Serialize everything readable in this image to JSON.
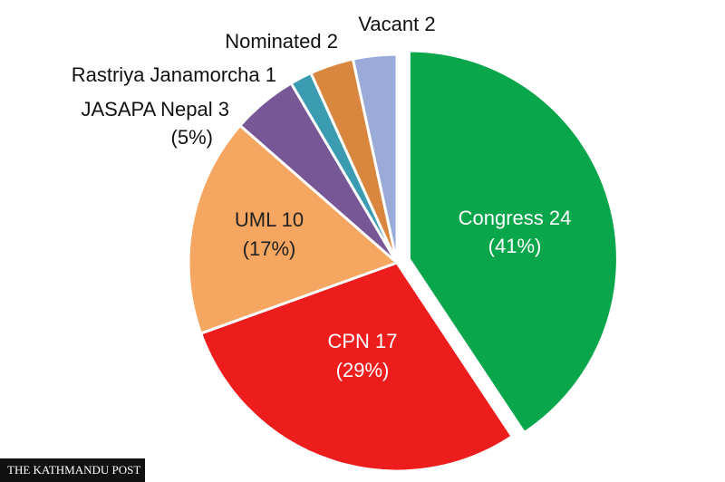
{
  "chart_data": {
    "type": "pie",
    "categories": [
      "Congress",
      "CPN",
      "UML",
      "JASAPA Nepal",
      "Rastriya Janamorcha",
      "Nominated",
      "Vacant"
    ],
    "values": [
      24,
      17,
      10,
      3,
      1,
      2,
      2
    ],
    "percent_labels": [
      "(41%)",
      "(29%)",
      "(17%)",
      "(5%)",
      null,
      null,
      null
    ],
    "colors": [
      "#0aa64b",
      "#ee1d1d",
      "#f5a660",
      "#775795",
      "#3b9bb0",
      "#d9863f",
      "#9aabd9"
    ],
    "source": "THE KATHMANDU POST"
  }
}
